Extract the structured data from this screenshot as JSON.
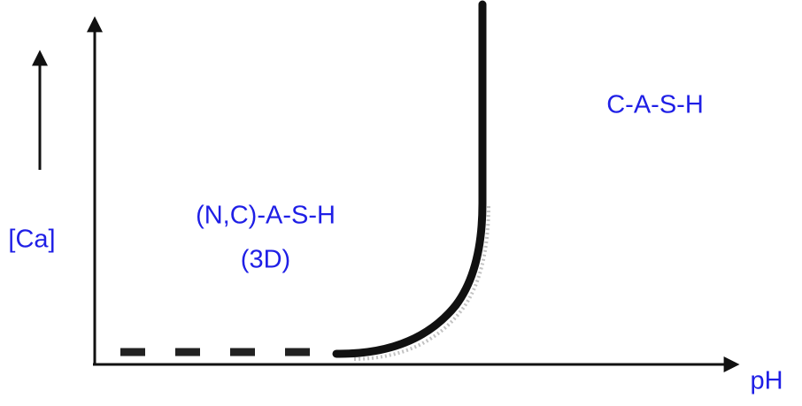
{
  "labels": {
    "y_axis": "[Ca]",
    "x_axis": "pH",
    "region_left": "(N,C)-A-S-H",
    "region_left_sub": "(3D)",
    "region_right": "C-A-S-H"
  }
}
